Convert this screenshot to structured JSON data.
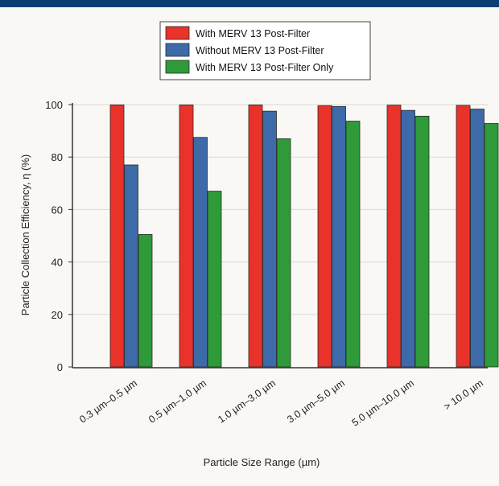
{
  "chart_data": {
    "type": "bar",
    "title": "",
    "xlabel": "Particle Size Range (µm)",
    "ylabel": "Particle Collection Efficiency, η (%)",
    "ylim": [
      0,
      100
    ],
    "yticks": [
      0,
      20,
      40,
      60,
      80,
      100
    ],
    "categories": [
      "0.3 µm–0.5 µm",
      "0.5 µm–1.0 µm",
      "1.0 µm–3.0 µm",
      "3.0 µm–5.0 µm",
      "5.0 µm–10.0 µm",
      "> 10.0 µm"
    ],
    "series": [
      {
        "name": "With MERV 13 Post-Filter",
        "color": "#e8322a",
        "values": [
          99.9,
          99.9,
          99.9,
          99.6,
          99.8,
          99.7
        ]
      },
      {
        "name": "Without MERV 13 Post-Filter",
        "color": "#3d6aa8",
        "values": [
          77,
          87.5,
          97.5,
          99.3,
          97.8,
          98.3
        ]
      },
      {
        "name": "With MERV 13 Post-Filter Only",
        "color": "#2e9a38",
        "values": [
          50.5,
          67,
          87,
          93.7,
          95.6,
          92.8
        ]
      }
    ],
    "grid": true,
    "legend_position": "top-center"
  }
}
